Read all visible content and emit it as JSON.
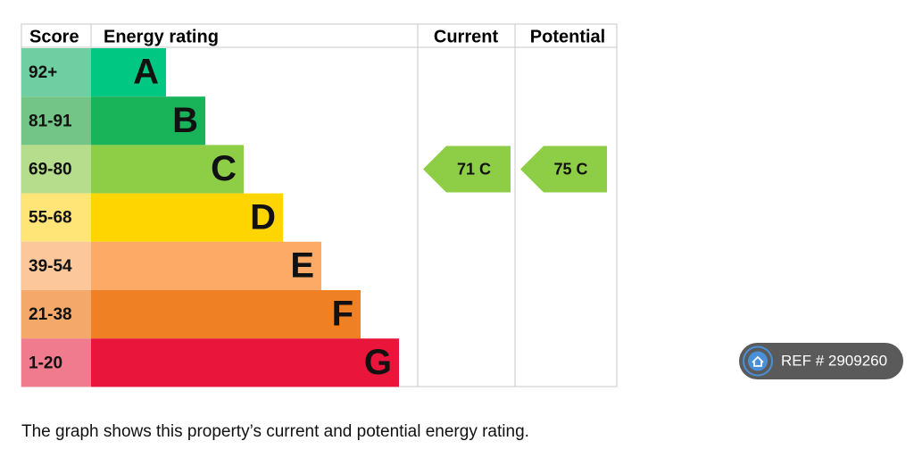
{
  "header": {
    "score": "Score",
    "rating": "Energy rating",
    "current": "Current",
    "potential": "Potential"
  },
  "bands": [
    {
      "score": "92+",
      "letter": "A",
      "color": "#00c781",
      "score_color": "#6fcfa3"
    },
    {
      "score": "81-91",
      "letter": "B",
      "color": "#19b459",
      "score_color": "#73c587"
    },
    {
      "score": "69-80",
      "letter": "C",
      "color": "#8dce46",
      "score_color": "#b5dd8c"
    },
    {
      "score": "55-68",
      "letter": "D",
      "color": "#ffd500",
      "score_color": "#ffe477"
    },
    {
      "score": "39-54",
      "letter": "E",
      "color": "#fcaa65",
      "score_color": "#fcc79a"
    },
    {
      "score": "21-38",
      "letter": "F",
      "color": "#ef8023",
      "score_color": "#f4a86a"
    },
    {
      "score": "1-20",
      "letter": "G",
      "color": "#e9153b",
      "score_color": "#f07a8e"
    }
  ],
  "current": {
    "label": "71 C",
    "color": "#8dce46"
  },
  "potential": {
    "label": "75 C",
    "color": "#8dce46"
  },
  "caption": "The graph shows this property’s current and potential energy rating.",
  "ref": "REF # 2909260"
}
